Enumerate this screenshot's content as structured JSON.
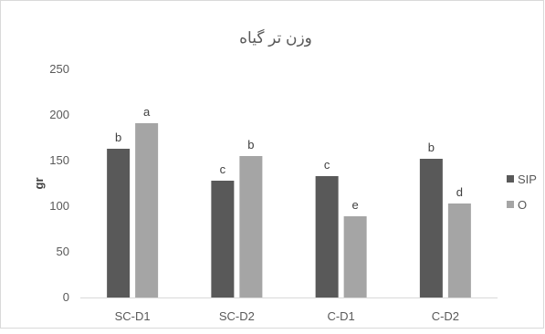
{
  "chart_data": {
    "type": "bar",
    "title": "وزن تر گیاه",
    "xlabel": "",
    "ylabel": "gr",
    "ylim": [
      0,
      250
    ],
    "yticks": [
      0,
      50,
      100,
      150,
      200,
      250
    ],
    "grid": false,
    "legend_position": "right",
    "categories": [
      "SC-D1",
      "SC-D2",
      "C-D1",
      "C-D2"
    ],
    "series": [
      {
        "name": "SIP",
        "color": "#595959",
        "values": [
          163,
          128,
          133,
          152
        ],
        "labels": [
          "b",
          "c",
          "c",
          "b"
        ]
      },
      {
        "name": "O",
        "color": "#a5a5a5",
        "values": [
          191,
          155,
          89,
          103
        ],
        "labels": [
          "a",
          "b",
          "e",
          "d"
        ]
      }
    ]
  }
}
